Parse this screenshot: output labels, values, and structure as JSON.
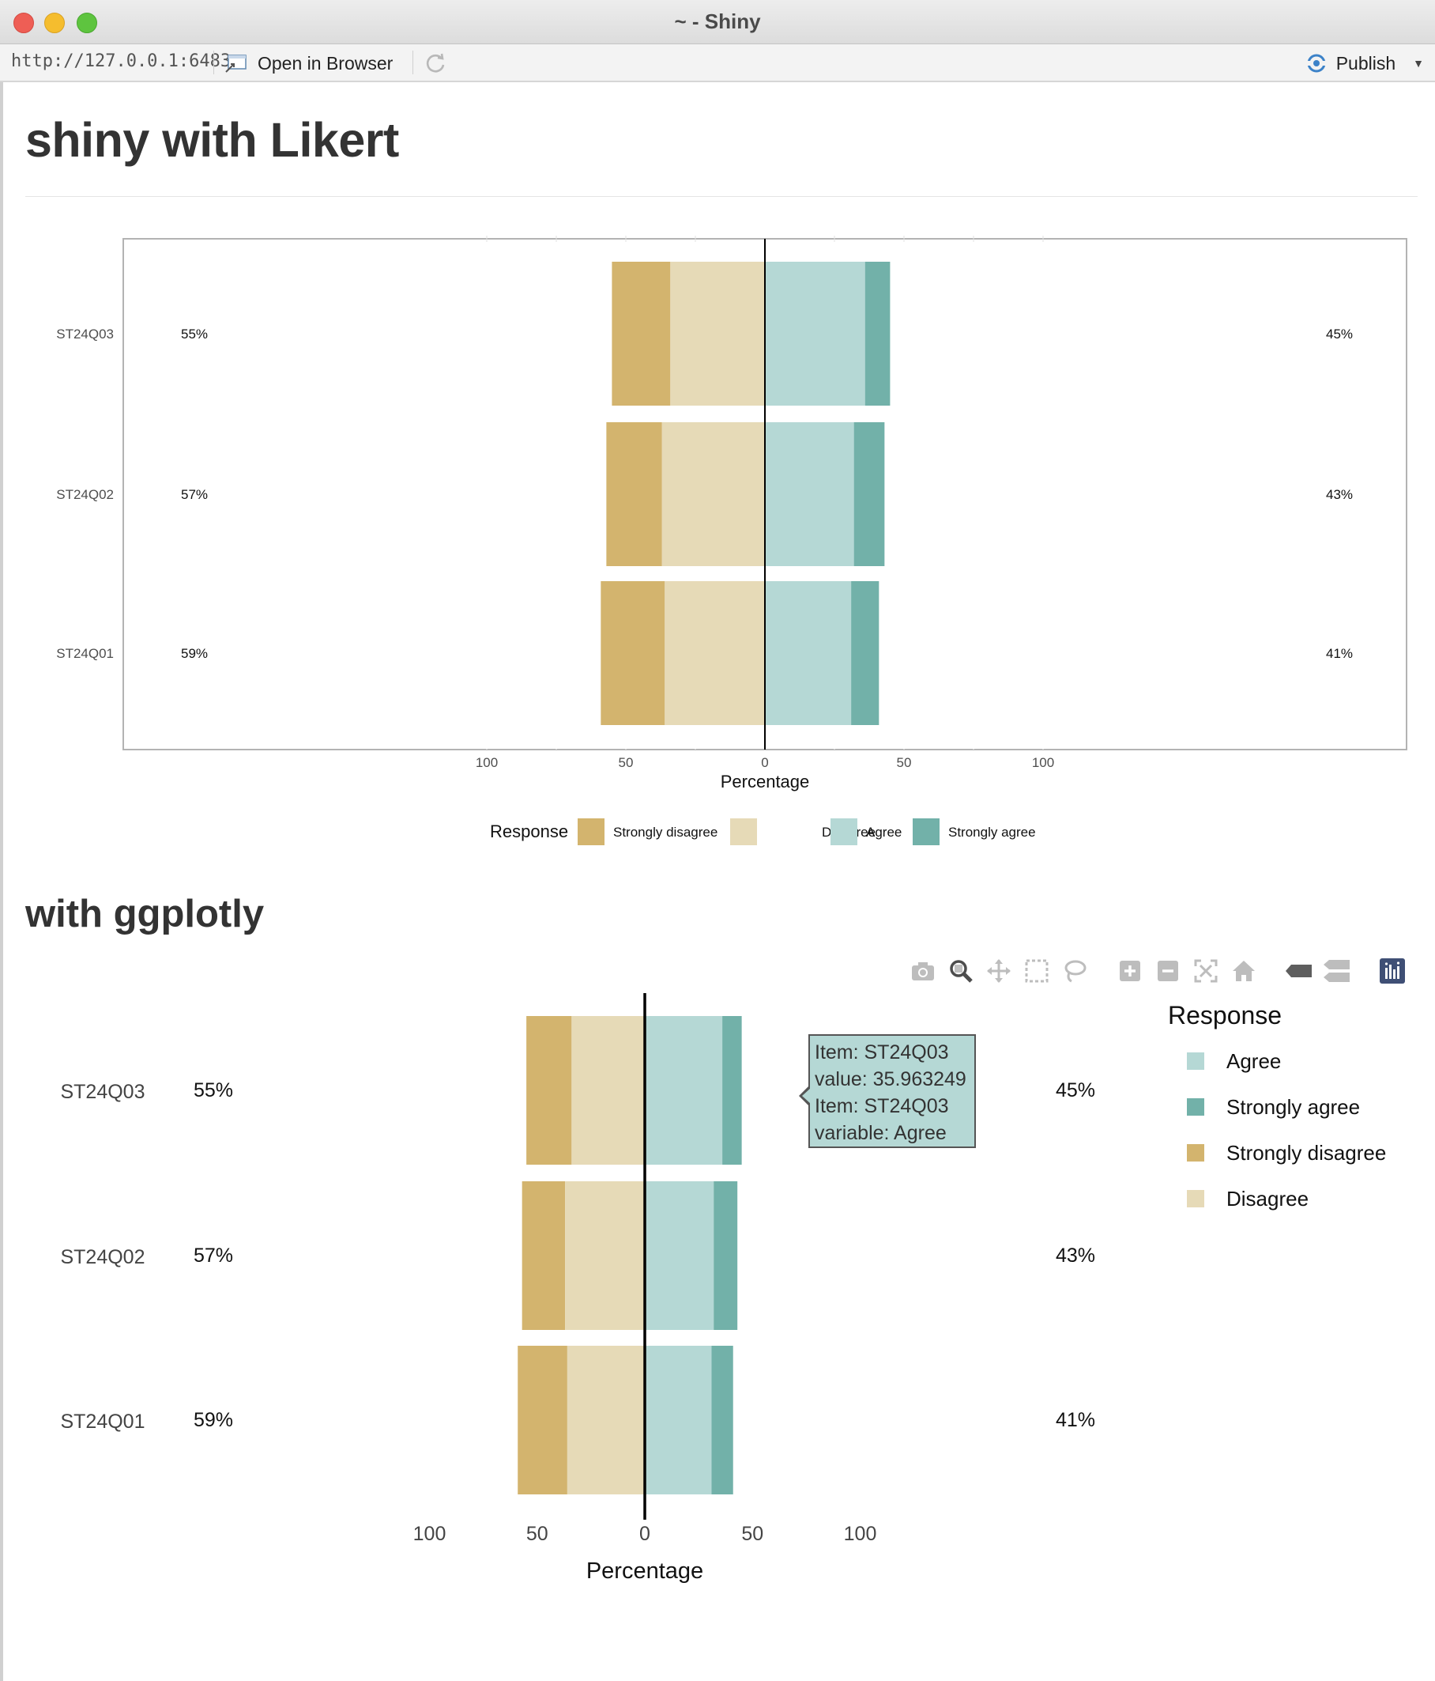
{
  "window": {
    "title": "~ - Shiny"
  },
  "toolbar": {
    "url": "http://127.0.0.1:6483",
    "open_in_browser": "Open in Browser",
    "publish": "Publish"
  },
  "page": {
    "title": "shiny with Likert",
    "subtitle": "with ggplotly"
  },
  "colors": {
    "strongly_disagree": "#d3b46e",
    "disagree": "#e6dab7",
    "agree": "#b5d8d5",
    "strongly_agree": "#72b1a9"
  },
  "chart_data": [
    {
      "type": "bar",
      "orientation": "horizontal-diverging-stacked",
      "categories": [
        "ST24Q03",
        "ST24Q02",
        "ST24Q01"
      ],
      "series": [
        {
          "name": "Strongly disagree",
          "values": [
            21,
            20,
            23
          ]
        },
        {
          "name": "Disagree",
          "values": [
            34,
            37,
            36
          ]
        },
        {
          "name": "Agree",
          "values": [
            36,
            32,
            31
          ]
        },
        {
          "name": "Strongly agree",
          "values": [
            9,
            11,
            10
          ]
        }
      ],
      "left_labels": [
        "55%",
        "57%",
        "59%"
      ],
      "right_labels": [
        "45%",
        "43%",
        "41%"
      ],
      "xlabel": "Percentage",
      "xticks": [
        "100",
        "50",
        "0",
        "50",
        "100"
      ],
      "xlim": [
        -100,
        100
      ],
      "legend": {
        "title": "Response",
        "placement": "bottom",
        "entries": [
          "Strongly disagree",
          "Disagree",
          "Agree",
          "Strongly agree"
        ]
      }
    },
    {
      "type": "bar",
      "orientation": "horizontal-diverging-stacked",
      "categories": [
        "ST24Q03",
        "ST24Q02",
        "ST24Q01"
      ],
      "series": [
        {
          "name": "Strongly disagree",
          "values": [
            21,
            20,
            23
          ]
        },
        {
          "name": "Disagree",
          "values": [
            34,
            37,
            36
          ]
        },
        {
          "name": "Agree",
          "values": [
            36,
            32,
            31
          ]
        },
        {
          "name": "Strongly agree",
          "values": [
            9,
            11,
            10
          ]
        }
      ],
      "left_labels": [
        "55%",
        "57%",
        "59%"
      ],
      "right_labels": [
        "45%",
        "43%",
        "41%"
      ],
      "xlabel": "Percentage",
      "xticks": [
        "100",
        "50",
        "0",
        "50",
        "100"
      ],
      "xlim": [
        -100,
        100
      ],
      "legend": {
        "title": "Response",
        "placement": "right",
        "entries": [
          "Agree",
          "Strongly agree",
          "Strongly disagree",
          "Disagree"
        ]
      },
      "tooltip": {
        "line1": "Item: ST24Q03",
        "line2": "value: 35.963249",
        "line3": "Item: ST24Q03",
        "line4": "variable: Agree"
      }
    }
  ]
}
